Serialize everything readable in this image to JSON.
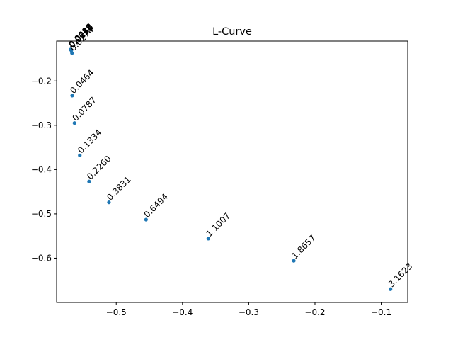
{
  "chart_data": {
    "type": "scatter",
    "title": "L-Curve",
    "xlabel": "",
    "ylabel": "",
    "xlim": [
      -0.59,
      -0.06
    ],
    "ylim": [
      -0.7,
      -0.11
    ],
    "xticks": [
      -0.5,
      -0.4,
      -0.3,
      -0.2,
      -0.1
    ],
    "xtick_labels": [
      "−0.5",
      "−0.4",
      "−0.3",
      "−0.2",
      "−0.1"
    ],
    "yticks": [
      -0.2,
      -0.3,
      -0.4,
      -0.5,
      -0.6
    ],
    "ytick_labels": [
      "−0.2",
      "−0.3",
      "−0.4",
      "−0.5",
      "−0.6"
    ],
    "grid": false,
    "legend": "none",
    "marker_color": "#1f77b4",
    "points": [
      {
        "x": -0.5685,
        "y": -0.129,
        "label": "0.0010"
      },
      {
        "x": -0.5685,
        "y": -0.129,
        "label": "0.0017"
      },
      {
        "x": -0.5684,
        "y": -0.129,
        "label": "0.0028"
      },
      {
        "x": -0.5684,
        "y": -0.1291,
        "label": "0.0048"
      },
      {
        "x": -0.5683,
        "y": -0.1293,
        "label": "0.0081"
      },
      {
        "x": -0.5681,
        "y": -0.1297,
        "label": "0.0136"
      },
      {
        "x": -0.5678,
        "y": -0.1308,
        "label": "0.0232"
      },
      {
        "x": -0.5668,
        "y": -0.137,
        "label": "0.0274"
      },
      {
        "x": -0.5665,
        "y": -0.233,
        "label": "0.0464"
      },
      {
        "x": -0.563,
        "y": -0.295,
        "label": "0.0787"
      },
      {
        "x": -0.555,
        "y": -0.368,
        "label": "0.1334"
      },
      {
        "x": -0.541,
        "y": -0.427,
        "label": "0.2260"
      },
      {
        "x": -0.511,
        "y": -0.474,
        "label": "0.3831"
      },
      {
        "x": -0.455,
        "y": -0.513,
        "label": "0.6494"
      },
      {
        "x": -0.361,
        "y": -0.556,
        "label": "1.1007"
      },
      {
        "x": -0.232,
        "y": -0.606,
        "label": "1.8657"
      },
      {
        "x": -0.086,
        "y": -0.67,
        "label": "3.1623"
      }
    ]
  }
}
